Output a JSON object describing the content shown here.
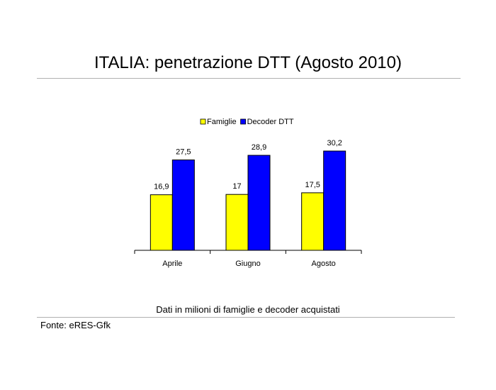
{
  "title": "ITALIA: penetrazione DTT (Agosto 2010)",
  "note": "Dati in milioni di famiglie e decoder acquistati",
  "source": "Fonte: eRES-Gfk",
  "chart_data": {
    "type": "bar",
    "categories": [
      "Aprile",
      "Giugno",
      "Agosto"
    ],
    "series": [
      {
        "name": "Famiglie",
        "values": [
          16.9,
          17,
          17.5
        ],
        "labels": [
          "16,9",
          "17",
          "17,5"
        ],
        "color": "#ffff00"
      },
      {
        "name": "Decoder DTT",
        "values": [
          27.5,
          28.9,
          30.2
        ],
        "labels": [
          "27,5",
          "28,9",
          "30,2"
        ],
        "color": "#0000ff"
      }
    ],
    "ylim": [
      0,
      30.2
    ],
    "legend": "top",
    "grid": false,
    "xlabel": "",
    "ylabel": ""
  }
}
